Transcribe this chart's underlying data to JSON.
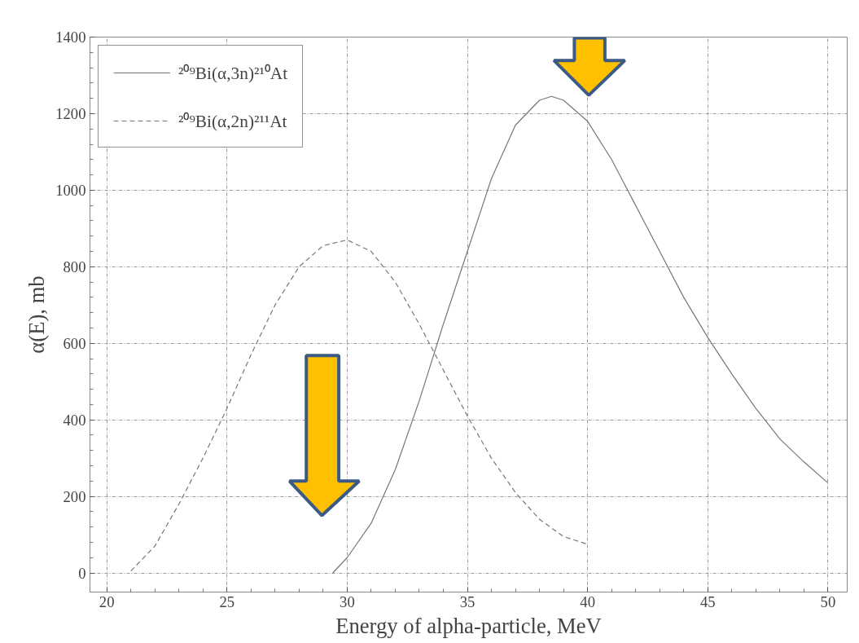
{
  "chart_data": {
    "type": "line",
    "xlabel": "Energy of alpha-particle, MeV",
    "ylabel": "α(E), mb",
    "xlim": [
      19.3,
      50.8
    ],
    "ylim": [
      -50,
      1400
    ],
    "xticks": [
      20,
      25,
      30,
      35,
      40,
      45,
      50
    ],
    "yticks": [
      0,
      200,
      400,
      600,
      800,
      1000,
      1200,
      1400
    ],
    "grid": true,
    "legend": "top left",
    "series": [
      {
        "name": "²⁰⁹Bi(α,3n)²¹⁰At",
        "color": "#777777",
        "line_style": "solid",
        "x": [
          29.4,
          30,
          31,
          32,
          33,
          34,
          35,
          36,
          37,
          38,
          38.5,
          39,
          40,
          41,
          42,
          43,
          44,
          45,
          46,
          47,
          48,
          49,
          50
        ],
        "values": [
          0,
          40,
          130,
          270,
          450,
          650,
          840,
          1030,
          1170,
          1235,
          1245,
          1235,
          1180,
          1080,
          960,
          840,
          720,
          615,
          520,
          430,
          350,
          290,
          235
        ]
      },
      {
        "name": "²⁰⁹Bi(α,2n)²¹¹At",
        "color": "#777777",
        "line_style": "dashed",
        "x": [
          21,
          22,
          23,
          24,
          25,
          26,
          27,
          28,
          29,
          30,
          31,
          32,
          33,
          34,
          35,
          36,
          37,
          38,
          39,
          40
        ],
        "values": [
          5,
          70,
          180,
          300,
          430,
          570,
          700,
          800,
          855,
          870,
          840,
          760,
          650,
          530,
          410,
          300,
          210,
          140,
          95,
          75
        ]
      }
    ]
  }
}
